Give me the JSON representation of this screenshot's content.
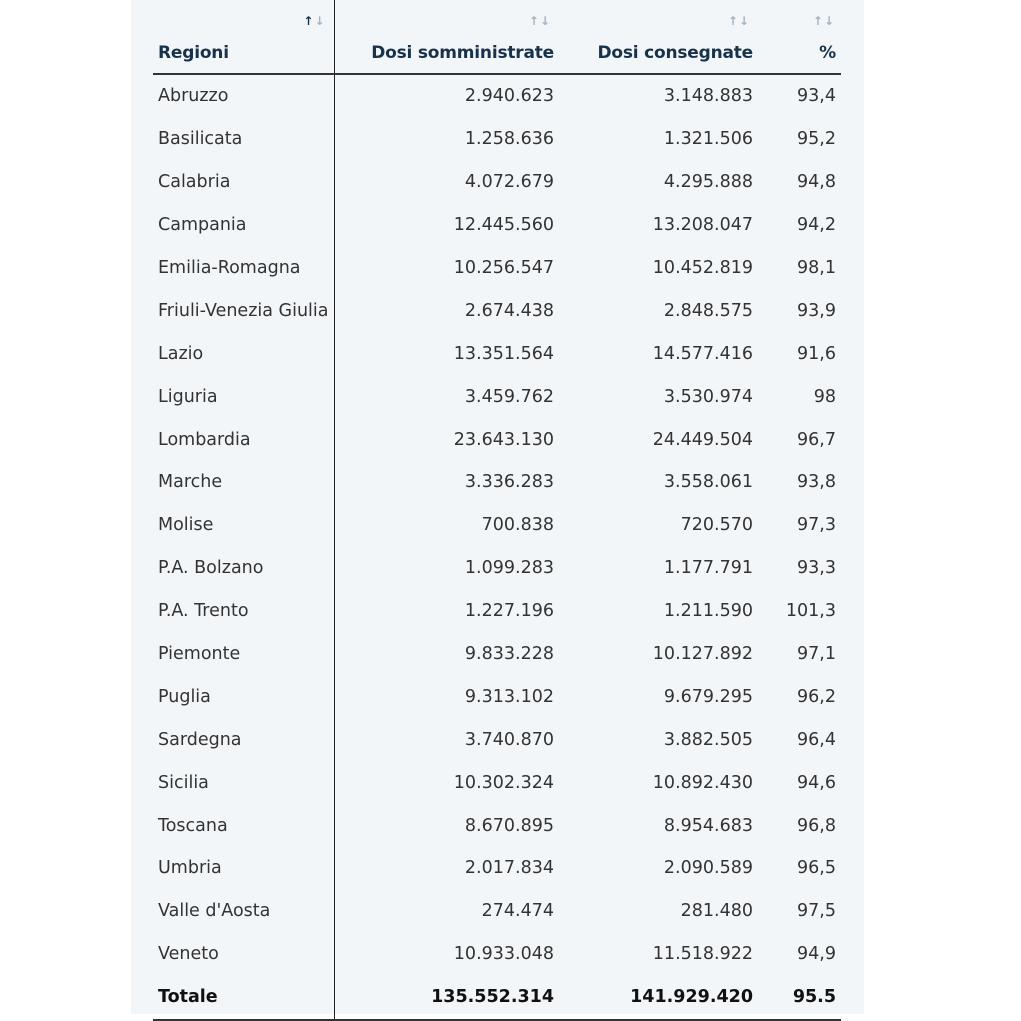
{
  "table": {
    "headers": {
      "region": "Regioni",
      "administered": "Dosi somministrate",
      "delivered": "Dosi consegnate",
      "percent": "%"
    },
    "sort_glyph_up": "↑",
    "sort_glyph_down": "↓",
    "rows": [
      {
        "region": "Abruzzo",
        "administered": "2.940.623",
        "delivered": "3.148.883",
        "percent": "93,4"
      },
      {
        "region": "Basilicata",
        "administered": "1.258.636",
        "delivered": "1.321.506",
        "percent": "95,2"
      },
      {
        "region": "Calabria",
        "administered": "4.072.679",
        "delivered": "4.295.888",
        "percent": "94,8"
      },
      {
        "region": "Campania",
        "administered": "12.445.560",
        "delivered": "13.208.047",
        "percent": "94,2"
      },
      {
        "region": "Emilia-Romagna",
        "administered": "10.256.547",
        "delivered": "10.452.819",
        "percent": "98,1"
      },
      {
        "region": "Friuli-Venezia Giulia",
        "administered": "2.674.438",
        "delivered": "2.848.575",
        "percent": "93,9"
      },
      {
        "region": "Lazio",
        "administered": "13.351.564",
        "delivered": "14.577.416",
        "percent": "91,6"
      },
      {
        "region": "Liguria",
        "administered": "3.459.762",
        "delivered": "3.530.974",
        "percent": "98"
      },
      {
        "region": "Lombardia",
        "administered": "23.643.130",
        "delivered": "24.449.504",
        "percent": "96,7"
      },
      {
        "region": "Marche",
        "administered": "3.336.283",
        "delivered": "3.558.061",
        "percent": "93,8"
      },
      {
        "region": "Molise",
        "administered": "700.838",
        "delivered": "720.570",
        "percent": "97,3"
      },
      {
        "region": "P.A. Bolzano",
        "administered": "1.099.283",
        "delivered": "1.177.791",
        "percent": "93,3"
      },
      {
        "region": "P.A. Trento",
        "administered": "1.227.196",
        "delivered": "1.211.590",
        "percent": "101,3"
      },
      {
        "region": "Piemonte",
        "administered": "9.833.228",
        "delivered": "10.127.892",
        "percent": "97,1"
      },
      {
        "region": "Puglia",
        "administered": "9.313.102",
        "delivered": "9.679.295",
        "percent": "96,2"
      },
      {
        "region": "Sardegna",
        "administered": "3.740.870",
        "delivered": "3.882.505",
        "percent": "96,4"
      },
      {
        "region": "Sicilia",
        "administered": "10.302.324",
        "delivered": "10.892.430",
        "percent": "94,6"
      },
      {
        "region": "Toscana",
        "administered": "8.670.895",
        "delivered": "8.954.683",
        "percent": "96,8"
      },
      {
        "region": "Umbria",
        "administered": "2.017.834",
        "delivered": "2.090.589",
        "percent": "96,5"
      },
      {
        "region": "Valle d'Aosta",
        "administered": "274.474",
        "delivered": "281.480",
        "percent": "97,5"
      },
      {
        "region": "Veneto",
        "administered": "10.933.048",
        "delivered": "11.518.922",
        "percent": "94,9"
      }
    ],
    "total": {
      "region": "Totale",
      "administered": "135.552.314",
      "delivered": "141.929.420",
      "percent": "95.5"
    }
  }
}
